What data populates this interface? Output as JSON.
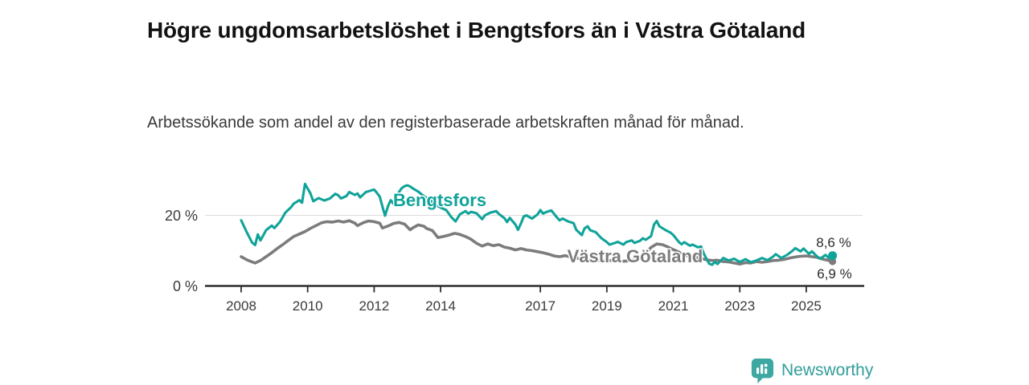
{
  "page": {
    "title": "Högre ungdomsarbetslöshet i Bengtsfors än i Västra Götaland",
    "subtitle": "Arbetssökande som andel av den registerbaserade arbetskraften månad för månad.",
    "brand": {
      "name": "Newsworthy",
      "icon": "bar-chart-speech-bubble-icon",
      "color": "#3da7a2"
    }
  },
  "chart_data": {
    "type": "line",
    "title": "Högre ungdomsarbetslöshet i Bengtsfors än i Västra Götaland",
    "subtitle": "Arbetssökande som andel av den registerbaserade arbetskraften månad för månad.",
    "grid": "single horizontal gridline at 20 %",
    "legend_position": "inline labels on lines",
    "x_axis": {
      "unit": "year",
      "range": [
        2007.9,
        2026.2
      ],
      "ticks": [
        2008,
        2010,
        2012,
        2014,
        2017,
        2019,
        2021,
        2023,
        2025
      ],
      "tick_labels": [
        "2008",
        "2010",
        "2012",
        "2014",
        "2017",
        "2019",
        "2021",
        "2023",
        "2025"
      ]
    },
    "y_axis": {
      "unit": "percent",
      "range": [
        0,
        33
      ],
      "ticks": [
        0,
        20
      ],
      "tick_labels": [
        "0 %",
        "20 %"
      ],
      "gridlines": [
        20
      ]
    },
    "series": [
      {
        "name": "Bengtsfors",
        "slug": "bengtsfors",
        "color": "#10a39a",
        "label_text": "Bengtsfors",
        "end_value": 8.6,
        "end_value_label": "8,6 %",
        "points": [
          [
            2008.0,
            18.6
          ],
          [
            2008.17,
            15.2
          ],
          [
            2008.33,
            12.3
          ],
          [
            2008.42,
            11.6
          ],
          [
            2008.5,
            14.6
          ],
          [
            2008.58,
            12.9
          ],
          [
            2008.75,
            15.8
          ],
          [
            2008.92,
            17.1
          ],
          [
            2009.0,
            16.4
          ],
          [
            2009.17,
            18.2
          ],
          [
            2009.33,
            20.8
          ],
          [
            2009.5,
            22.3
          ],
          [
            2009.58,
            23.3
          ],
          [
            2009.75,
            24.3
          ],
          [
            2009.83,
            23.6
          ],
          [
            2009.92,
            28.9
          ],
          [
            2010.08,
            26.3
          ],
          [
            2010.17,
            24.0
          ],
          [
            2010.33,
            24.9
          ],
          [
            2010.5,
            24.2
          ],
          [
            2010.67,
            24.8
          ],
          [
            2010.83,
            26.1
          ],
          [
            2010.92,
            25.7
          ],
          [
            2011.0,
            24.8
          ],
          [
            2011.17,
            25.5
          ],
          [
            2011.25,
            26.6
          ],
          [
            2011.42,
            25.8
          ],
          [
            2011.5,
            26.2
          ],
          [
            2011.58,
            25.1
          ],
          [
            2011.75,
            26.6
          ],
          [
            2011.92,
            27.1
          ],
          [
            2012.0,
            27.3
          ],
          [
            2012.08,
            26.4
          ],
          [
            2012.17,
            25.3
          ],
          [
            2012.25,
            22.5
          ],
          [
            2012.33,
            19.9
          ],
          [
            2012.42,
            22.7
          ],
          [
            2012.5,
            24.3
          ],
          [
            2012.58,
            23.3
          ],
          [
            2012.67,
            25.5
          ],
          [
            2012.83,
            27.7
          ],
          [
            2012.92,
            28.3
          ],
          [
            2013.0,
            28.5
          ],
          [
            2013.08,
            28.2
          ],
          [
            2013.17,
            27.6
          ],
          [
            2013.33,
            26.7
          ],
          [
            2013.5,
            25.4
          ],
          [
            2013.67,
            24.5
          ],
          [
            2013.83,
            23.1
          ],
          [
            2014.0,
            22.2
          ],
          [
            2014.17,
            21.5
          ],
          [
            2014.33,
            19.4
          ],
          [
            2014.45,
            18.3
          ],
          [
            2014.58,
            20.3
          ],
          [
            2014.75,
            21.2
          ],
          [
            2014.83,
            20.5
          ],
          [
            2014.92,
            21.0
          ],
          [
            2015.08,
            20.6
          ],
          [
            2015.25,
            18.9
          ],
          [
            2015.33,
            20.0
          ],
          [
            2015.5,
            20.8
          ],
          [
            2015.67,
            21.2
          ],
          [
            2015.75,
            20.4
          ],
          [
            2015.92,
            19.2
          ],
          [
            2016.0,
            18.1
          ],
          [
            2016.08,
            19.3
          ],
          [
            2016.25,
            17.4
          ],
          [
            2016.33,
            15.9
          ],
          [
            2016.42,
            17.8
          ],
          [
            2016.5,
            19.7
          ],
          [
            2016.58,
            20.0
          ],
          [
            2016.75,
            19.1
          ],
          [
            2016.92,
            20.3
          ],
          [
            2017.0,
            21.5
          ],
          [
            2017.08,
            20.5
          ],
          [
            2017.17,
            20.9
          ],
          [
            2017.33,
            21.4
          ],
          [
            2017.5,
            19.4
          ],
          [
            2017.58,
            18.6
          ],
          [
            2017.67,
            19.1
          ],
          [
            2017.83,
            18.3
          ],
          [
            2018.0,
            17.8
          ],
          [
            2018.08,
            15.9
          ],
          [
            2018.25,
            14.4
          ],
          [
            2018.33,
            16.3
          ],
          [
            2018.42,
            16.9
          ],
          [
            2018.5,
            15.8
          ],
          [
            2018.67,
            15.2
          ],
          [
            2018.83,
            13.6
          ],
          [
            2019.0,
            12.4
          ],
          [
            2019.08,
            11.7
          ],
          [
            2019.25,
            12.2
          ],
          [
            2019.33,
            12.5
          ],
          [
            2019.5,
            11.7
          ],
          [
            2019.58,
            12.4
          ],
          [
            2019.75,
            12.9
          ],
          [
            2019.83,
            12.2
          ],
          [
            2020.0,
            12.8
          ],
          [
            2020.08,
            13.5
          ],
          [
            2020.17,
            13.1
          ],
          [
            2020.33,
            14.1
          ],
          [
            2020.42,
            17.4
          ],
          [
            2020.5,
            18.4
          ],
          [
            2020.58,
            16.9
          ],
          [
            2020.75,
            15.9
          ],
          [
            2020.92,
            15.1
          ],
          [
            2021.0,
            14.4
          ],
          [
            2021.17,
            12.4
          ],
          [
            2021.25,
            11.8
          ],
          [
            2021.33,
            12.4
          ],
          [
            2021.5,
            11.4
          ],
          [
            2021.58,
            11.7
          ],
          [
            2021.75,
            10.9
          ],
          [
            2021.83,
            11.2
          ],
          [
            2021.92,
            9.1
          ],
          [
            2022.08,
            6.3
          ],
          [
            2022.17,
            6.0
          ],
          [
            2022.25,
            6.8
          ],
          [
            2022.33,
            6.2
          ],
          [
            2022.5,
            7.9
          ],
          [
            2022.67,
            7.2
          ],
          [
            2022.83,
            7.7
          ],
          [
            2023.0,
            6.8
          ],
          [
            2023.17,
            7.6
          ],
          [
            2023.33,
            6.7
          ],
          [
            2023.5,
            7.2
          ],
          [
            2023.67,
            7.9
          ],
          [
            2023.83,
            7.3
          ],
          [
            2024.0,
            8.3
          ],
          [
            2024.08,
            9.0
          ],
          [
            2024.25,
            7.9
          ],
          [
            2024.42,
            8.8
          ],
          [
            2024.58,
            9.9
          ],
          [
            2024.67,
            10.7
          ],
          [
            2024.83,
            9.8
          ],
          [
            2024.92,
            10.6
          ],
          [
            2025.08,
            9.1
          ],
          [
            2025.17,
            9.8
          ],
          [
            2025.33,
            8.3
          ],
          [
            2025.42,
            7.7
          ],
          [
            2025.58,
            8.8
          ],
          [
            2025.67,
            7.9
          ],
          [
            2025.79,
            8.6
          ]
        ]
      },
      {
        "name": "Västra Götaland",
        "slug": "vastra-gotaland",
        "color": "#7c7c7c",
        "label_text": "Västra Götaland",
        "end_value": 6.9,
        "end_value_label": "6,9 %",
        "points": [
          [
            2008.0,
            8.3
          ],
          [
            2008.17,
            7.4
          ],
          [
            2008.33,
            6.8
          ],
          [
            2008.42,
            6.5
          ],
          [
            2008.58,
            7.2
          ],
          [
            2008.75,
            8.3
          ],
          [
            2008.92,
            9.4
          ],
          [
            2009.08,
            10.6
          ],
          [
            2009.25,
            11.7
          ],
          [
            2009.42,
            12.9
          ],
          [
            2009.58,
            14.0
          ],
          [
            2009.75,
            14.7
          ],
          [
            2009.92,
            15.4
          ],
          [
            2010.08,
            16.3
          ],
          [
            2010.25,
            17.1
          ],
          [
            2010.42,
            17.9
          ],
          [
            2010.58,
            18.2
          ],
          [
            2010.75,
            18.1
          ],
          [
            2010.92,
            18.4
          ],
          [
            2011.08,
            18.1
          ],
          [
            2011.25,
            18.5
          ],
          [
            2011.42,
            17.8
          ],
          [
            2011.5,
            17.1
          ],
          [
            2011.67,
            17.9
          ],
          [
            2011.83,
            18.4
          ],
          [
            2012.0,
            18.2
          ],
          [
            2012.17,
            17.8
          ],
          [
            2012.25,
            16.4
          ],
          [
            2012.42,
            17.0
          ],
          [
            2012.58,
            17.7
          ],
          [
            2012.75,
            18.0
          ],
          [
            2012.92,
            17.5
          ],
          [
            2013.08,
            15.9
          ],
          [
            2013.17,
            16.5
          ],
          [
            2013.33,
            17.3
          ],
          [
            2013.5,
            16.9
          ],
          [
            2013.58,
            16.3
          ],
          [
            2013.75,
            15.7
          ],
          [
            2013.92,
            13.7
          ],
          [
            2014.08,
            14.0
          ],
          [
            2014.25,
            14.4
          ],
          [
            2014.42,
            14.9
          ],
          [
            2014.58,
            14.6
          ],
          [
            2014.75,
            14.0
          ],
          [
            2014.92,
            13.2
          ],
          [
            2015.08,
            12.1
          ],
          [
            2015.25,
            11.3
          ],
          [
            2015.42,
            11.9
          ],
          [
            2015.58,
            11.4
          ],
          [
            2015.75,
            11.7
          ],
          [
            2015.92,
            11.0
          ],
          [
            2016.08,
            10.7
          ],
          [
            2016.25,
            10.2
          ],
          [
            2016.42,
            10.6
          ],
          [
            2016.58,
            10.2
          ],
          [
            2016.75,
            10.0
          ],
          [
            2016.92,
            9.7
          ],
          [
            2017.08,
            9.4
          ],
          [
            2017.25,
            9.0
          ],
          [
            2017.42,
            8.5
          ],
          [
            2017.58,
            8.3
          ],
          [
            2017.75,
            8.6
          ],
          [
            2017.92,
            8.2
          ],
          [
            2018.08,
            7.9
          ],
          [
            2018.25,
            7.6
          ],
          [
            2018.5,
            7.4
          ],
          [
            2018.75,
            7.2
          ],
          [
            2019.0,
            7.3
          ],
          [
            2019.25,
            7.1
          ],
          [
            2019.5,
            7.0
          ],
          [
            2019.75,
            7.2
          ],
          [
            2020.0,
            7.8
          ],
          [
            2020.17,
            9.3
          ],
          [
            2020.33,
            10.9
          ],
          [
            2020.5,
            11.9
          ],
          [
            2020.67,
            11.7
          ],
          [
            2020.83,
            11.1
          ],
          [
            2021.0,
            10.3
          ],
          [
            2021.17,
            9.6
          ],
          [
            2021.33,
            8.8
          ],
          [
            2021.5,
            8.4
          ],
          [
            2021.67,
            8.1
          ],
          [
            2021.83,
            7.8
          ],
          [
            2022.0,
            7.4
          ],
          [
            2022.17,
            7.2
          ],
          [
            2022.33,
            7.3
          ],
          [
            2022.5,
            6.9
          ],
          [
            2022.67,
            6.8
          ],
          [
            2022.83,
            6.5
          ],
          [
            2023.0,
            6.2
          ],
          [
            2023.17,
            6.6
          ],
          [
            2023.33,
            6.5
          ],
          [
            2023.5,
            6.9
          ],
          [
            2023.67,
            6.7
          ],
          [
            2023.83,
            6.9
          ],
          [
            2024.0,
            7.2
          ],
          [
            2024.17,
            7.3
          ],
          [
            2024.33,
            7.5
          ],
          [
            2024.5,
            7.9
          ],
          [
            2024.67,
            8.2
          ],
          [
            2024.83,
            8.4
          ],
          [
            2025.0,
            8.5
          ],
          [
            2025.17,
            8.3
          ],
          [
            2025.33,
            8.1
          ],
          [
            2025.5,
            7.6
          ],
          [
            2025.67,
            7.2
          ],
          [
            2025.79,
            6.9
          ]
        ]
      }
    ]
  }
}
